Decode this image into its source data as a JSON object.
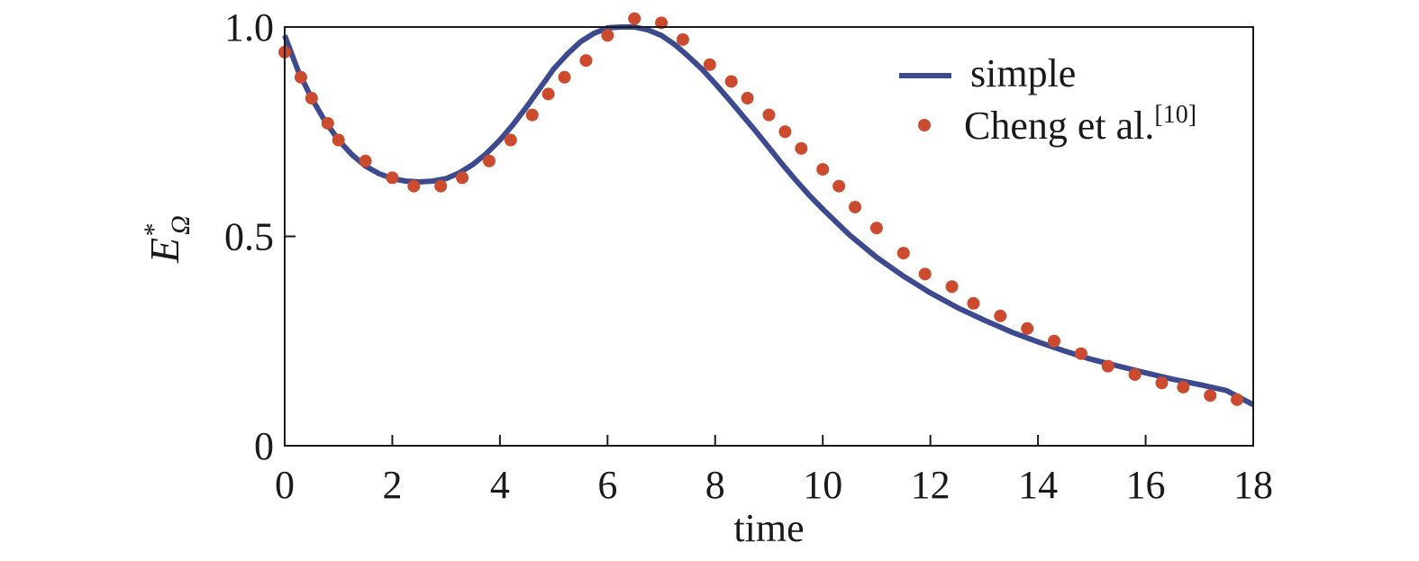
{
  "chart_data": {
    "type": "line",
    "xlabel": "time",
    "ylabel": {
      "base": "E",
      "superscript": "*",
      "subscript": "Ω"
    },
    "xlim": [
      0,
      18
    ],
    "ylim": [
      0,
      1.0
    ],
    "x_ticks": [
      0,
      2,
      4,
      6,
      8,
      10,
      12,
      14,
      16,
      18
    ],
    "x_tick_labels": [
      "0",
      "2",
      "4",
      "6",
      "8",
      "10",
      "12",
      "14",
      "16",
      "18"
    ],
    "y_ticks": [
      0,
      0.5,
      1.0
    ],
    "y_tick_labels": [
      "0",
      "0.5",
      "1.0"
    ],
    "grid": false,
    "legend_position": "top-right",
    "series": [
      {
        "name": "simple",
        "style": "line",
        "color": "#3d4a8f",
        "x": [
          0,
          0.25,
          0.5,
          0.75,
          1.0,
          1.25,
          1.5,
          1.75,
          2.0,
          2.25,
          2.5,
          2.75,
          3.0,
          3.25,
          3.5,
          3.75,
          4.0,
          4.25,
          4.5,
          4.75,
          5.0,
          5.25,
          5.5,
          5.75,
          6.0,
          6.25,
          6.5,
          6.75,
          7.0,
          7.25,
          7.5,
          7.75,
          8.0,
          8.25,
          8.5,
          8.75,
          9.0,
          9.25,
          9.5,
          9.75,
          10.0,
          10.5,
          11.0,
          11.5,
          12.0,
          12.5,
          13.0,
          13.5,
          14.0,
          14.5,
          15.0,
          15.5,
          16.0,
          16.5,
          17.0,
          17.5,
          18.0
        ],
        "y": [
          0.98,
          0.895,
          0.83,
          0.775,
          0.73,
          0.695,
          0.668,
          0.65,
          0.638,
          0.632,
          0.63,
          0.632,
          0.638,
          0.652,
          0.672,
          0.698,
          0.73,
          0.768,
          0.81,
          0.855,
          0.9,
          0.935,
          0.965,
          0.985,
          0.998,
          1.0,
          1.0,
          0.993,
          0.98,
          0.958,
          0.93,
          0.9,
          0.865,
          0.828,
          0.79,
          0.752,
          0.712,
          0.672,
          0.634,
          0.598,
          0.565,
          0.503,
          0.45,
          0.405,
          0.365,
          0.33,
          0.3,
          0.272,
          0.248,
          0.226,
          0.206,
          0.19,
          0.174,
          0.159,
          0.146,
          0.132,
          0.098
        ]
      },
      {
        "name": "Cheng et al.",
        "name_superscript": "[10]",
        "style": "scatter",
        "color": "#cc4b2e",
        "x": [
          0.0,
          0.3,
          0.5,
          0.8,
          1.0,
          1.5,
          2.0,
          2.4,
          2.9,
          3.3,
          3.8,
          4.2,
          4.6,
          4.9,
          5.2,
          5.6,
          6.0,
          6.5,
          7.0,
          7.4,
          7.9,
          8.3,
          8.6,
          9.0,
          9.3,
          9.6,
          10.0,
          10.3,
          10.6,
          11.0,
          11.5,
          11.9,
          12.4,
          12.8,
          13.3,
          13.8,
          14.3,
          14.8,
          15.3,
          15.8,
          16.3,
          16.7,
          17.2,
          17.7
        ],
        "y": [
          0.94,
          0.88,
          0.83,
          0.77,
          0.73,
          0.68,
          0.64,
          0.62,
          0.62,
          0.64,
          0.68,
          0.73,
          0.79,
          0.84,
          0.88,
          0.92,
          0.98,
          1.02,
          1.01,
          0.97,
          0.91,
          0.87,
          0.83,
          0.79,
          0.75,
          0.71,
          0.66,
          0.62,
          0.57,
          0.52,
          0.46,
          0.41,
          0.38,
          0.34,
          0.31,
          0.28,
          0.25,
          0.22,
          0.19,
          0.17,
          0.15,
          0.14,
          0.12,
          0.11
        ]
      }
    ]
  }
}
